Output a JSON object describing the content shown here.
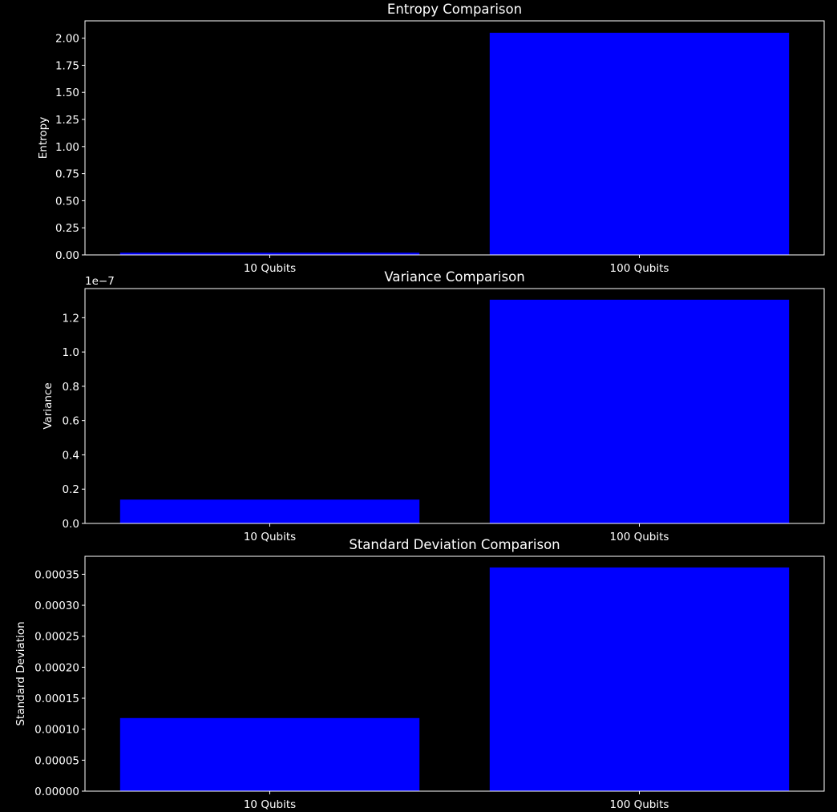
{
  "chart_data": [
    {
      "type": "bar",
      "title": "Entropy Comparison",
      "xlabel": "",
      "ylabel": "Entropy",
      "categories": [
        "10 Qubits",
        "100 Qubits"
      ],
      "values": [
        0.02,
        2.05
      ],
      "ylim": [
        0,
        2.16
      ],
      "yticks": [
        0,
        0.25,
        0.5,
        0.75,
        1.0,
        1.25,
        1.5,
        1.75,
        2.0
      ],
      "ytick_labels": [
        "0.00",
        "0.25",
        "0.50",
        "0.75",
        "1.00",
        "1.25",
        "1.50",
        "1.75",
        "2.00"
      ],
      "offset_label": "",
      "grid": false,
      "bar_color": "#0000ff"
    },
    {
      "type": "bar",
      "title": "Variance Comparison",
      "xlabel": "",
      "ylabel": "Variance",
      "categories": [
        "10 Qubits",
        "100 Qubits"
      ],
      "values": [
        1.39e-08,
        1.305e-07
      ],
      "ylim": [
        0,
        1.37e-07
      ],
      "yticks": [
        0,
        2e-08,
        4e-08,
        6e-08,
        8e-08,
        1e-07,
        1.2e-07
      ],
      "ytick_labels": [
        "0.0",
        "0.2",
        "0.4",
        "0.6",
        "0.8",
        "1.0",
        "1.2"
      ],
      "offset_label": "1e−7",
      "grid": false,
      "bar_color": "#0000ff"
    },
    {
      "type": "bar",
      "title": "Standard Deviation Comparison",
      "xlabel": "",
      "ylabel": "Standard Deviation",
      "categories": [
        "10 Qubits",
        "100 Qubits"
      ],
      "values": [
        0.000118,
        0.000361
      ],
      "ylim": [
        0,
        0.000379
      ],
      "yticks": [
        0,
        5e-05,
        0.0001,
        0.00015,
        0.0002,
        0.00025,
        0.0003,
        0.00035
      ],
      "ytick_labels": [
        "0.00000",
        "0.00005",
        "0.00010",
        "0.00015",
        "0.00020",
        "0.00025",
        "0.00030",
        "0.00035"
      ],
      "offset_label": "",
      "grid": false,
      "bar_color": "#0000ff"
    }
  ]
}
